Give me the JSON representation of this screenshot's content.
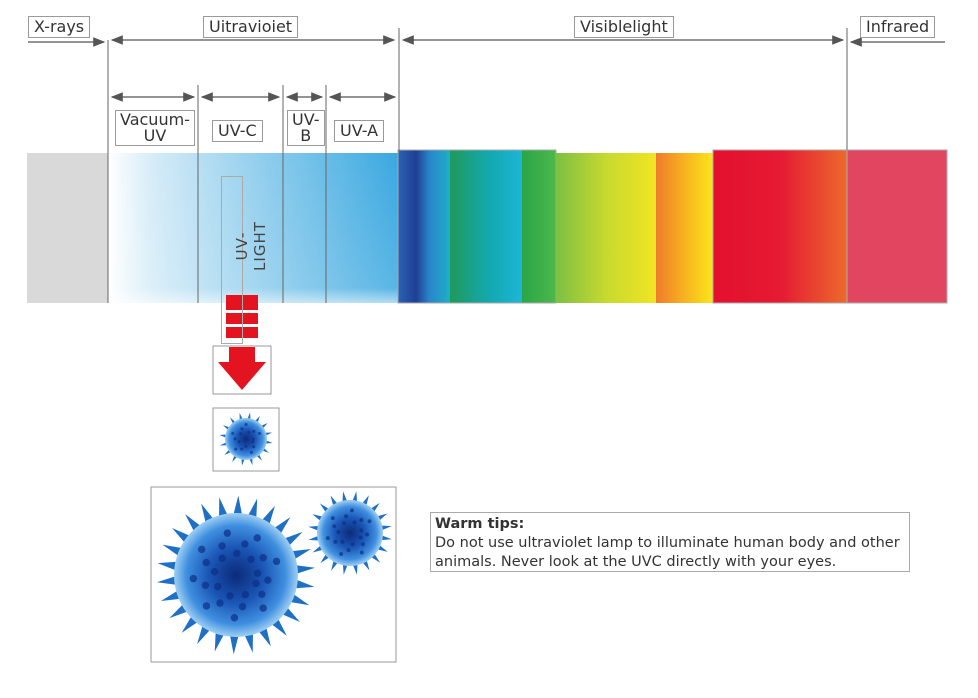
{
  "bands": {
    "xrays": "X-rays",
    "ultraviolet": "Uitravioiet",
    "visible": "Visiblelight",
    "infrared": "Infrared"
  },
  "uv_subbands": {
    "vacuum_uv_line1": "Vacuum-",
    "vacuum_uv_line2": "UV",
    "uvc": "UV-C",
    "uvb_line1": "UV-",
    "uvb_line2": "B",
    "uva": "UV-A"
  },
  "uv_light_label": "UV- LIGHT",
  "warm_tips": {
    "title": "Warm tips:",
    "text": "Do not use ultraviolet lamp to illuminate human body and other animals. Never look at the UVC directly with your eyes."
  },
  "icons": {
    "arrow": "down-arrow-icon",
    "virus_small": "virus-icon",
    "virus_large": "virus-icon"
  },
  "colors": {
    "xray_band": "#d9d9d9",
    "uv_blue": "#3aa8e0",
    "arrow_red": "#e3141f",
    "virus_blue": "#1f6fc4",
    "infrared": "#e24560",
    "red": "#e5102f"
  }
}
